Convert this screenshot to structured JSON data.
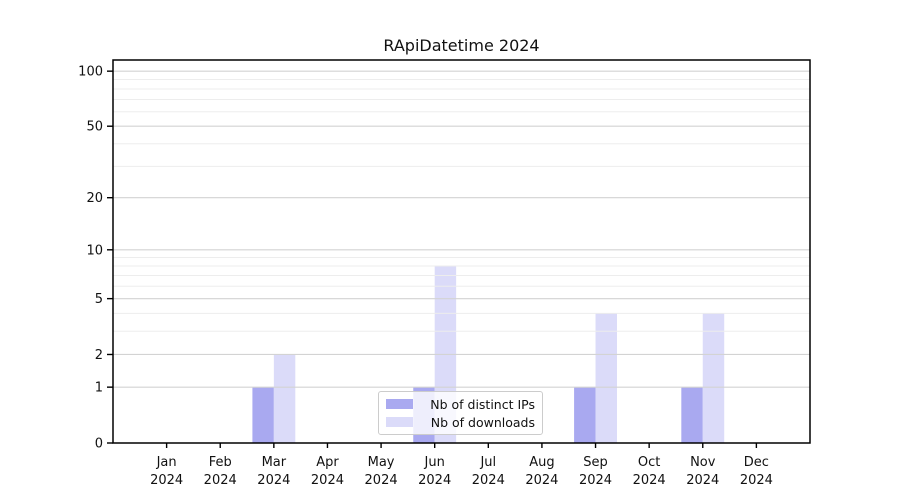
{
  "chart_data": {
    "type": "bar",
    "title": "RApiDatetime 2024",
    "categories": [
      "Jan",
      "Feb",
      "Mar",
      "Apr",
      "May",
      "Jun",
      "Jul",
      "Aug",
      "Sep",
      "Oct",
      "Nov",
      "Dec"
    ],
    "category_year": "2024",
    "series": [
      {
        "name": "Nb of distinct IPs",
        "color": "#a9a9f0",
        "values": [
          0,
          0,
          1,
          0,
          0,
          1,
          0,
          0,
          1,
          0,
          1,
          0
        ]
      },
      {
        "name": "Nb of downloads",
        "color": "#dbdbf9",
        "values": [
          0,
          0,
          2,
          0,
          0,
          8,
          0,
          0,
          4,
          0,
          4,
          0
        ]
      }
    ],
    "yscale": "log1p",
    "ylim": [
      0,
      115
    ],
    "y_ticks": [
      0,
      1,
      2,
      5,
      10,
      20,
      50,
      100
    ],
    "y_minor_ticks": [
      3,
      4,
      6,
      7,
      8,
      9,
      30,
      40,
      60,
      70,
      80,
      90
    ],
    "xlabel": "",
    "ylabel": "",
    "grid": "horizontal",
    "legend_position": "lower center"
  },
  "colors": {
    "background": "#ffffff",
    "axis": "#000000",
    "tick_text": "#111111",
    "major_grid": "#d3d3d3",
    "minor_grid": "#ededed",
    "legend_border": "#cccccc",
    "legend_background": "rgba(255,255,255,0.8)"
  }
}
